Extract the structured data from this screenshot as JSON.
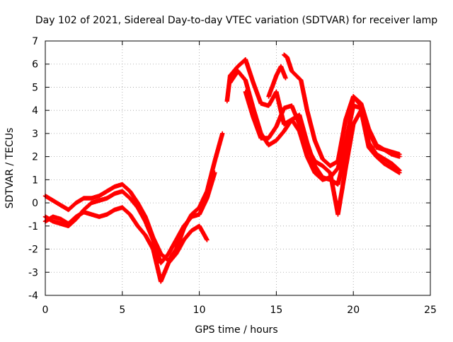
{
  "chart_data": {
    "type": "scatter",
    "title": "Day 102 of 2021, Sidereal Day-to-day VTEC variation (SDTVAR) for receiver lamp",
    "xlabel": "GPS time / hours",
    "ylabel": "SDTVAR / TECUs",
    "xlim": [
      0,
      25
    ],
    "ylim": [
      -4,
      7
    ],
    "x_ticks": [
      0,
      5,
      10,
      15,
      20,
      25
    ],
    "y_ticks": [
      -4,
      -3,
      -2,
      -1,
      0,
      1,
      2,
      3,
      4,
      5,
      6,
      7
    ],
    "grid": true,
    "marker": "+",
    "color": "#ff0000",
    "series": [
      {
        "x": [
          0,
          0.5,
          1,
          1.5,
          2,
          2.5,
          3,
          3.5,
          4,
          4.5,
          5,
          5.5,
          6,
          6.5,
          7,
          7.5,
          8,
          8.5,
          9,
          9.5,
          10,
          10.5,
          11,
          11.5
        ],
        "y": [
          0.3,
          0.1,
          -0.1,
          -0.3,
          0,
          0.2,
          0.2,
          0.3,
          0.5,
          0.7,
          0.8,
          0.5,
          0,
          -0.6,
          -1.5,
          -2.2,
          -2.5,
          -2,
          -1.1,
          -0.5,
          -0.2,
          0.5,
          1.8,
          3
        ]
      },
      {
        "x": [
          0,
          0.5,
          1,
          1.5,
          2,
          2.5,
          3,
          3.5,
          4,
          4.5,
          5,
          5.5,
          6,
          6.5,
          7,
          7.5,
          8,
          8.5,
          9,
          9.5,
          10,
          10.5,
          11
        ],
        "y": [
          -0.6,
          -0.8,
          -0.9,
          -1,
          -0.7,
          -0.3,
          0,
          0.1,
          0.2,
          0.4,
          0.5,
          0.2,
          -0.2,
          -0.8,
          -1.6,
          -2.6,
          -2.2,
          -1.6,
          -1,
          -0.6,
          -0.5,
          0.2,
          1.3
        ]
      },
      {
        "x": [
          0,
          0.5,
          1,
          1.5,
          2,
          2.5,
          3,
          3.5,
          4,
          4.5,
          5,
          5.5,
          6,
          6.5,
          7,
          7.5,
          8,
          8.5,
          9,
          9.5,
          10,
          10.5
        ],
        "y": [
          -0.8,
          -0.6,
          -0.7,
          -0.9,
          -0.6,
          -0.4,
          -0.5,
          -0.6,
          -0.5,
          -0.3,
          -0.2,
          -0.5,
          -1,
          -1.4,
          -2,
          -3.4,
          -2.6,
          -2.2,
          -1.6,
          -1.2,
          -1,
          -1.6
        ]
      },
      {
        "x": [
          11.8,
          12,
          12.5,
          13,
          13.5,
          14,
          14.5,
          15,
          15.5,
          16,
          16.5,
          17,
          17.5,
          18,
          18.5,
          19,
          19.5,
          20,
          20.5,
          21,
          21.5,
          22,
          22.5,
          23
        ],
        "y": [
          4.4,
          5.5,
          5.9,
          6.2,
          5.2,
          4.3,
          4.2,
          4.8,
          3.4,
          3.6,
          3.1,
          2,
          1.3,
          1,
          1.1,
          1.5,
          2.6,
          4.2,
          4.1,
          2.6,
          2.1,
          1.9,
          1.7,
          1.4
        ]
      },
      {
        "x": [
          12,
          12.5,
          13,
          13.5,
          14,
          14.5,
          15,
          15.5,
          16,
          16.5,
          17,
          17.5,
          18,
          18.5,
          19,
          19.5,
          20,
          20.5,
          21,
          21.5,
          22,
          22.5,
          23
        ],
        "y": [
          5.2,
          5.7,
          5.3,
          4.1,
          3,
          2.5,
          2.7,
          3.1,
          3.6,
          3.8,
          2.6,
          1.6,
          1.1,
          1,
          0.8,
          2.2,
          4.6,
          4.3,
          3.2,
          2.5,
          2.3,
          2.1,
          2
        ]
      },
      {
        "x": [
          13,
          13.5,
          14,
          14.5,
          15,
          15.5,
          16,
          16.5,
          17,
          17.5,
          18,
          18.5,
          19,
          19.5,
          20,
          20.5,
          21,
          21.5,
          22,
          22.5,
          23
        ],
        "y": [
          4.8,
          3.7,
          2.8,
          2.8,
          3.3,
          4.1,
          4.2,
          3.4,
          2.4,
          1.8,
          1.6,
          1.3,
          -0.5,
          1.5,
          3.4,
          4,
          2.4,
          2,
          1.7,
          1.5,
          1.3
        ]
      },
      {
        "x": [
          15.5,
          15.7,
          16,
          16.3,
          16.6,
          17,
          17.5,
          18,
          18.5,
          19,
          19.5,
          20,
          20.5,
          21,
          21.5,
          22,
          22.5,
          23
        ],
        "y": [
          6.4,
          6.3,
          5.7,
          5.5,
          5.3,
          4,
          2.7,
          1.9,
          1.6,
          1.8,
          3.6,
          4.6,
          4.2,
          3.1,
          2.4,
          2.3,
          2.2,
          2.1
        ]
      },
      {
        "x": [
          14.5,
          15,
          15.3,
          15.6
        ],
        "y": [
          4.6,
          5.5,
          5.9,
          5.4
        ]
      }
    ]
  }
}
